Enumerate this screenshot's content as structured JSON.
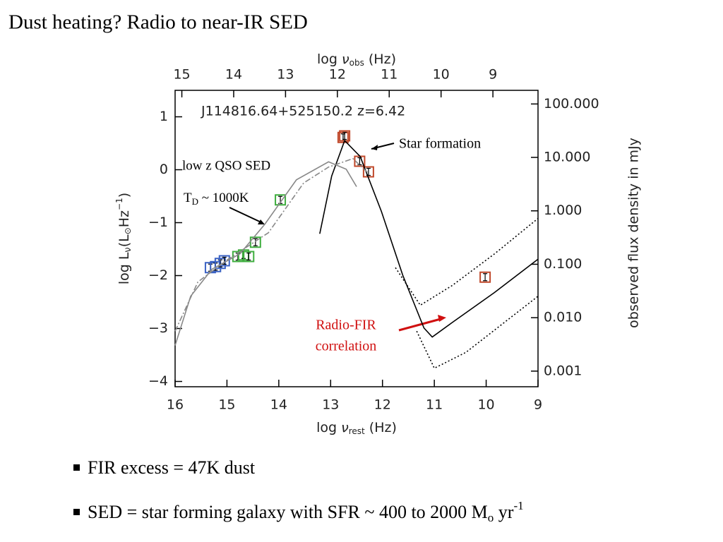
{
  "slide": {
    "title": "Dust heating? Radio to near-IR SED",
    "bullets": [
      {
        "parts": [
          "FIR excess = 47K dust"
        ]
      },
      {
        "parts": [
          "SED = star forming galaxy with  SFR ~ 400 to 2000 M",
          "o",
          " yr",
          "-1"
        ]
      }
    ]
  },
  "chart_data": {
    "type": "scatter",
    "annotations": {
      "object": "J114816.64+525150.2   z=6.42",
      "star": "Star formation",
      "qso": "low z QSO SED",
      "td": [
        "T",
        "D",
        " ~ 1000K"
      ],
      "radio": [
        "Radio-FIR",
        "correlation"
      ]
    },
    "xlabel": [
      "log ",
      "ν",
      "rest",
      " (Hz)"
    ],
    "x2label": [
      "log ",
      "ν",
      "obs",
      " (Hz)"
    ],
    "ylabel": [
      "log L",
      "ν",
      "(L",
      "⊙",
      "Hz",
      "−1",
      ")"
    ],
    "y2label": "observed flux density in mJy",
    "xlim": [
      16,
      9
    ],
    "xticks": [
      16,
      15,
      14,
      13,
      12,
      11,
      10,
      9
    ],
    "x2lim": [
      15.13,
      8.13
    ],
    "x2ticks": [
      15,
      14,
      13,
      12,
      11,
      10,
      9
    ],
    "ylim": [
      -4.1,
      1.5
    ],
    "yticks": [
      1,
      0,
      {
        "value": -1,
        "label": "−1"
      },
      {
        "value": -2,
        "label": "−2"
      },
      {
        "value": -3,
        "label": "−3"
      },
      {
        "value": -4,
        "label": "−4"
      }
    ],
    "y2lim": [
      0.00051,
      180
    ],
    "y2log": true,
    "y2ticks": [
      {
        "value": 100,
        "label": "100.000"
      },
      {
        "value": 10,
        "label": "10.000"
      },
      {
        "value": 1,
        "label": "1.000"
      },
      {
        "value": 0.1,
        "label": "0.100"
      },
      {
        "value": 0.01,
        "label": "0.010"
      },
      {
        "value": 0.001,
        "label": "0.001"
      }
    ],
    "series": [
      {
        "kind": "points",
        "color": "#3a62c4",
        "x": [
          15.32,
          15.22,
          15.13,
          15.05
        ],
        "values": [
          -1.85,
          -1.83,
          -1.77,
          -1.72
        ]
      },
      {
        "kind": "points",
        "color": "#3fae3f",
        "x": [
          14.79,
          14.68,
          14.58,
          14.45,
          13.97
        ],
        "values": [
          -1.64,
          -1.61,
          -1.64,
          -1.37,
          -0.57
        ]
      },
      {
        "kind": "points",
        "color": "#c0482a",
        "x": [
          12.76,
          12.73,
          12.44,
          12.27,
          10.02
        ],
        "values": [
          0.61,
          0.64,
          0.16,
          -0.04,
          -2.03
        ]
      },
      {
        "kind": "line",
        "color": "#000000",
        "dash": "solid",
        "x": [
          13.21,
          12.98,
          12.73,
          12.43,
          12.02,
          11.61,
          11.2,
          11.04,
          10.66,
          9.84,
          9.0
        ],
        "values": [
          -1.21,
          -0.12,
          0.55,
          0.25,
          -0.79,
          -1.99,
          -2.99,
          -3.16,
          -2.89,
          -2.32,
          -1.69
        ]
      },
      {
        "kind": "line",
        "color": "#000000",
        "dash": "dotted",
        "x": [
          11.75,
          11.27,
          10.66,
          9.84,
          9.0
        ],
        "values": [
          -1.85,
          -2.56,
          -2.19,
          -1.59,
          -0.92
        ]
      },
      {
        "kind": "line",
        "color": "#000000",
        "dash": "dotted",
        "x": [
          11.34,
          11.0,
          10.39,
          9.0
        ],
        "values": [
          -3.05,
          -3.75,
          -3.45,
          -2.39
        ]
      },
      {
        "kind": "line",
        "color": "#888888",
        "dash": "solid",
        "x": [
          16,
          15.7,
          15.29,
          14.75,
          14.27,
          13.66,
          13.04,
          12.7,
          12.5
        ],
        "values": [
          -3.32,
          -2.39,
          -1.88,
          -1.59,
          -1.03,
          -0.19,
          0.15,
          0.01,
          -0.32
        ]
      },
      {
        "kind": "line",
        "color": "#888888",
        "dash": "dashdot",
        "x": [
          16,
          15.56,
          15.02,
          14.2,
          13.52,
          13.04,
          12.57,
          12.29
        ],
        "values": [
          -3.05,
          -2.12,
          -1.72,
          -1.19,
          -0.25,
          0.05,
          0.21,
          -0.05
        ]
      }
    ]
  }
}
